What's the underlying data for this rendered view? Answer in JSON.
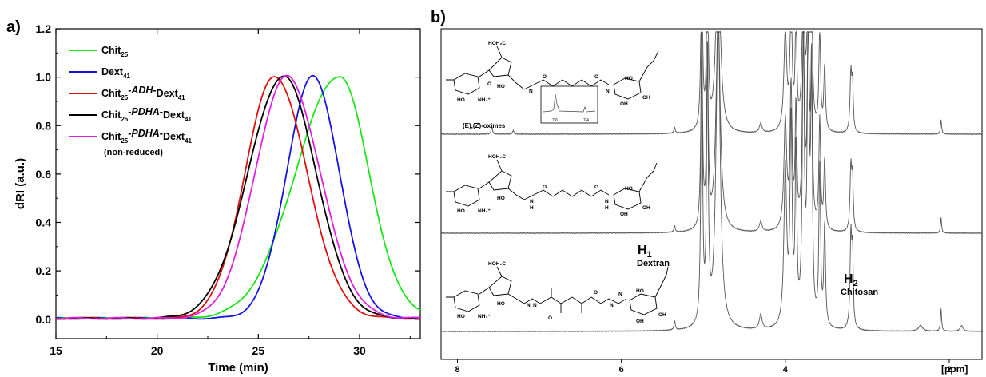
{
  "panel_a_label": "a)",
  "panel_b_label": "b)",
  "chart_data": [
    {
      "type": "line",
      "xlabel": "Time (min)",
      "ylabel": "dRI (a.u.)",
      "xlim": [
        15,
        33
      ],
      "ylim": [
        -0.08,
        1.2
      ],
      "xticks": [
        "15",
        "20",
        "25",
        "30"
      ],
      "yticks": [
        "0.0",
        "0.2",
        "0.4",
        "0.6",
        "0.8",
        "1.0",
        "1.2"
      ],
      "legend_position": "top-left",
      "legend_note": "(non-reduced)",
      "series": [
        {
          "name": "Chit25",
          "label_main": "Chit",
          "label_sub": "25",
          "color": "#19e619",
          "peak": 29.0,
          "sigma_left": 2.15,
          "sigma_right": 1.45,
          "baseline_end": 0.015
        },
        {
          "name": "Dext41",
          "label_main": "Dext",
          "label_sub": "41",
          "color": "#1515e0",
          "peak": 27.7,
          "sigma_left": 1.3,
          "sigma_right": 1.3,
          "baseline_end": 0.0
        },
        {
          "name": "Chit25-ADH-Dext41",
          "label_main": "Chit",
          "label_sub": "25",
          "label_mid": "-ADH-",
          "label_main2": "Dext",
          "label_sub2": "41",
          "color": "#e01010",
          "peak": 25.8,
          "sigma_left": 1.45,
          "sigma_right": 1.6,
          "baseline_end": 0.0
        },
        {
          "name": "Chit25-PDHA-Dext41",
          "label_main": "Chit",
          "label_sub": "25",
          "label_mid": "-PDHA-",
          "label_main2": "Dext",
          "label_sub2": "41",
          "color": "#000000",
          "peak": 26.25,
          "sigma_left": 1.75,
          "sigma_right": 1.6,
          "baseline_end": 0.0
        },
        {
          "name": "Chit25-PDHA-Dext41 (non-reduced)",
          "label_main": "Chit",
          "label_sub": "25",
          "label_mid": "-PDHA-",
          "label_main2": "Dext",
          "label_sub2": "41",
          "color": "#e020e0",
          "peak": 26.4,
          "sigma_left": 1.55,
          "sigma_right": 1.65,
          "baseline_end": 0.0
        }
      ]
    },
    {
      "type": "line",
      "title": "",
      "xlabel": "[ppm]",
      "xlim": [
        8.2,
        1.6
      ],
      "xticks": [
        "8",
        "6",
        "4",
        "2"
      ],
      "series_count": 3,
      "annotations": {
        "h1_label": "H",
        "h1_sub": "1",
        "h1_text": "Dextran",
        "h2_label": "H",
        "h2_sub": "2",
        "h2_text": "Chitosan",
        "oximes": "(E),(Z)-oximes",
        "inset_ticks": [
          "7.6",
          "7.4"
        ]
      },
      "structure_labels": {
        "hoh2c": "HOH₂C",
        "ho": "HO",
        "nh3": "NH₃⁺",
        "o": "O",
        "n": "N",
        "h": "H",
        "oh": "OH"
      }
    }
  ]
}
